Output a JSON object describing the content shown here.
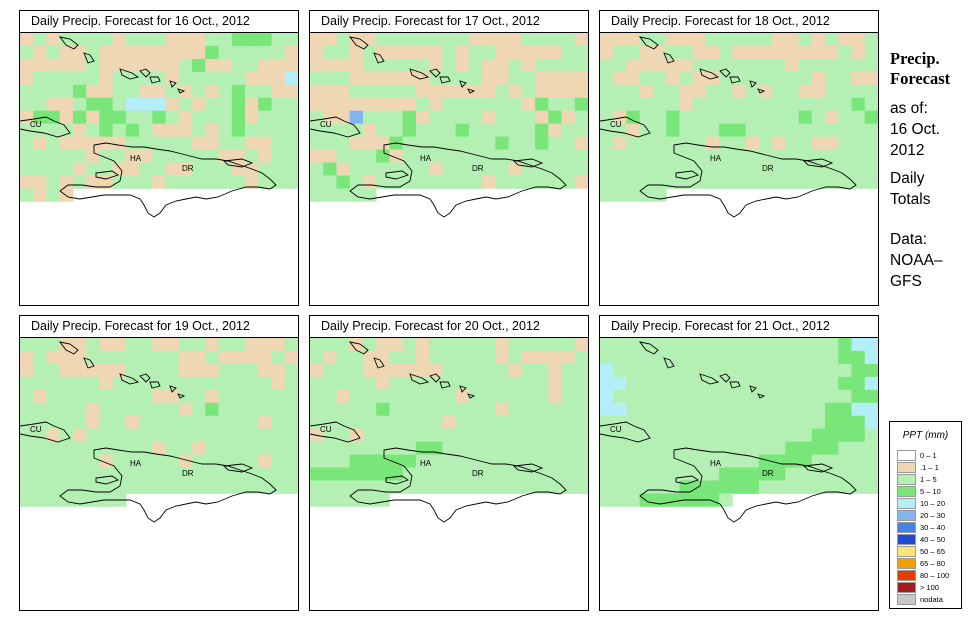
{
  "panels": [
    {
      "title": "Daily Precip. Forecast for  16 Oct., 2012"
    },
    {
      "title": "Daily Precip. Forecast for  17 Oct., 2012"
    },
    {
      "title": "Daily Precip. Forecast for  18 Oct., 2012"
    },
    {
      "title": "Daily Precip. Forecast for  19 Oct., 2012"
    },
    {
      "title": "Daily Precip. Forecast for  20 Oct., 2012"
    },
    {
      "title": "Daily Precip. Forecast for  21 Oct., 2012"
    }
  ],
  "map_labels": {
    "cuba": "CU",
    "haiti": "HA",
    "dominican_republic": "DR"
  },
  "sidebar": {
    "title_line1": "Precip.",
    "title_line2": "Forecast",
    "asof_line1": "as of:",
    "asof_line2": "16 Oct.",
    "asof_line3": "2012",
    "daily_line1": "Daily",
    "daily_line2": "Totals",
    "data_line1": "Data:",
    "data_line2": "NOAA–",
    "data_line3": "GFS"
  },
  "legend": {
    "title": "PPT (mm)",
    "items": [
      {
        "label": "0 – 1",
        "color": "#ffffff"
      },
      {
        "label": ".1 – 1",
        "color": "#f0d7b4"
      },
      {
        "label": "1 – 5",
        "color": "#b4f0b4"
      },
      {
        "label": "5 – 10",
        "color": "#78e678"
      },
      {
        "label": "10 – 20",
        "color": "#b4eef8"
      },
      {
        "label": "20 – 30",
        "color": "#82b4f0"
      },
      {
        "label": "30 – 40",
        "color": "#4682e6"
      },
      {
        "label": "40 – 50",
        "color": "#1e4bd2"
      },
      {
        "label": "50 – 65",
        "color": "#f8e678"
      },
      {
        "label": "65 – 80",
        "color": "#f0a000"
      },
      {
        "label": "80 – 100",
        "color": "#e63c00"
      },
      {
        "label": "> 100",
        "color": "#a01e1e"
      },
      {
        "label": "nodata",
        "color": "#c8c8c8"
      }
    ]
  },
  "grid_data": [
    {
      "cols": 21,
      "rows": 21,
      "cells": "B1B1111B111BBB11222111B1BB1BBBBBBBB211111BBBBBB1BBBBBB12BB11BBBB11111B1111B11111BBB311112BB11BB1B1B1211BB11BB1221333B1B112B211B22B2B221121B1112B1111111B12121BBB1B1211111B1BBBBB11111BB11BB1111111B11BB11111BB1B111111B11BB11BB111BB111BB1B1BB111B111111B1111B1B"
    },
    {
      "cols": 21,
      "rows": 21,
      "cells": "BB1BB1111111BBBB1111BB11B1BBBBB1B11BBBBB11BBBB11111B1B1BB1B1111111BBBBBB1111BB11BBBBBBB11111BBBBBB1B1BBBBBBBBBBBB1B111111B21121BB41112B1111B111B2B11111B1121112111112B11111BBB21111111211211BBB1112B1111111111111112B111111B11111B111111121B11111111B111111B11111"
    },
    {
      "cols": 21,
      "rows": 21,
      "cells": "BBB11BBB11111BB1B1BB1B11BB11BB1BBBBBBBB1B111BBBBB1111111B1111111BB11B1BB1111111B11BB111B11BB11B1B11BB1111111111B111111111111211B211211111111121B11211B1121112211111111111B111111B11B1B11BB11111111111111111111111111111111111111111111111111111111111111111111111"
    },
    {
      "cols": 21,
      "rows": 21,
      "cells": "111BB1BB11BB11B11BBB1B1BBB1111111BB1BBBB1BB11BBBBB1111BBB111BB1111111B111111111111B11B11111111BB11B11111111111B111111B1211111111111B11B111111111B1111B1B11111111111111111111111111B11B1111111111111B11111B11111B1111111111111111111111111111111111111111111111111111"
    },
    {
      "cols": 21,
      "rows": 21,
      "cells": "111B1BB1B11111B11111B1B11BB11B11111B1BBBB1B111BBBBBB11111B11B1111111B111111111111B1111B11111111B111111B1111111211111111B1111111111111111B1111111111B11B11111111111111111111111112211111111111111222221111111111111222222211111111111111111111111111111111111111111"
    },
    {
      "cols": 21,
      "rows": 21,
      "cells": "1111111111111111112331111111111111111112233111111111111111111223311111111111111112233111111111111111111223311111111111111122331111111111111111122231111111111111111222211111111111111122221111111111111112222111111111111112222211111111111112222221111111111112222221"
    }
  ]
}
